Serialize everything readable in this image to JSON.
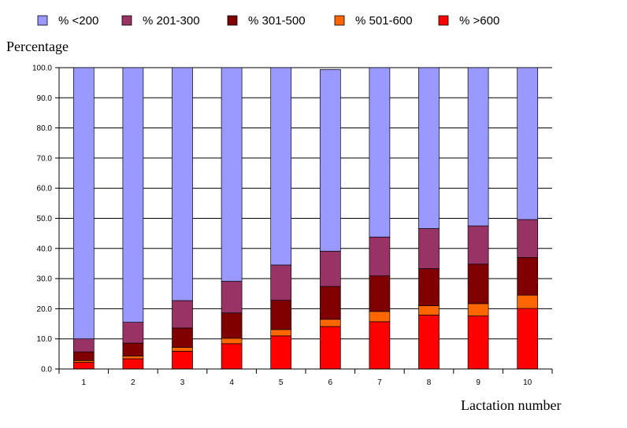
{
  "chart_data": {
    "type": "bar",
    "stacked": true,
    "title": "",
    "ylabel": "Percentage",
    "xlabel": "Lactation number",
    "ylim": [
      0,
      100
    ],
    "yticks": [
      "0.0",
      "10.0",
      "20.0",
      "30.0",
      "40.0",
      "50.0",
      "60.0",
      "70.0",
      "80.0",
      "90.0",
      "100.0"
    ],
    "categories": [
      "1",
      "2",
      "3",
      "4",
      "5",
      "6",
      "7",
      "8",
      "9",
      "10"
    ],
    "grid": true,
    "legend_position": "top",
    "series": [
      {
        "name": "% >600",
        "color": "#ff0000",
        "values": [
          2.2,
          3.4,
          5.9,
          8.4,
          11.0,
          14.1,
          15.7,
          17.9,
          17.6,
          20.1
        ]
      },
      {
        "name": "% 501-600",
        "color": "#ff6600",
        "values": [
          0.6,
          0.9,
          1.3,
          1.8,
          2.1,
          2.4,
          3.4,
          3.1,
          4.1,
          4.4
        ]
      },
      {
        "name": "% 301-500",
        "color": "#800000",
        "values": [
          2.9,
          4.3,
          6.4,
          8.4,
          9.7,
          10.9,
          11.8,
          12.3,
          13.1,
          12.5
        ]
      },
      {
        "name": "% 201-300",
        "color": "#993366",
        "values": [
          4.3,
          6.9,
          9.1,
          10.5,
          11.7,
          11.7,
          12.9,
          13.3,
          12.7,
          12.6
        ]
      },
      {
        "name": "% <200",
        "color": "#9999ff",
        "values": [
          90.0,
          84.5,
          77.3,
          70.9,
          65.5,
          60.3,
          56.2,
          53.4,
          52.5,
          50.4
        ]
      }
    ],
    "legend_order": [
      "% <200",
      "% 201-300",
      "% 301-500",
      "% 501-600",
      "% >600"
    ]
  }
}
